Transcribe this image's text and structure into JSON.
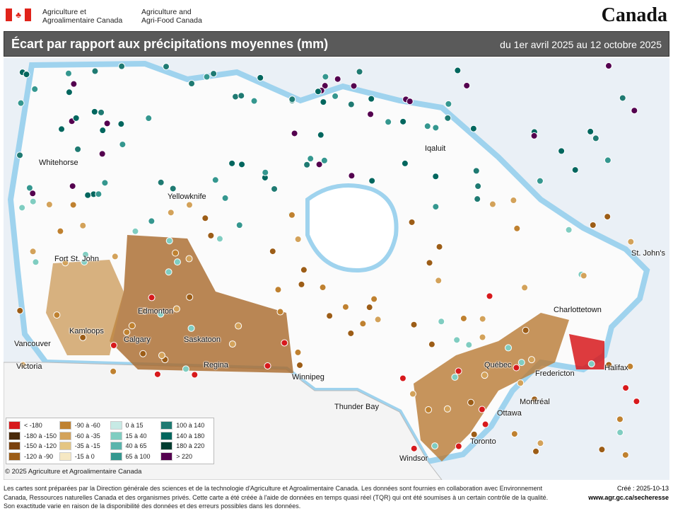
{
  "header": {
    "dept_fr": [
      "Agriculture et",
      "Agroalimentaire Canada"
    ],
    "dept_en": [
      "Agriculture and",
      "Agri-Food Canada"
    ],
    "wordmark": "Canada"
  },
  "title": "Écart par rapport aux précipitations moyennes (mm)",
  "date_range": "du 1er avril 2025 au 12 octobre 2025",
  "cities": [
    "Whitehorse",
    "Yellowknife",
    "Iqaluit",
    "Fort St. John",
    "Edmonton",
    "Kamloops",
    "Calgary",
    "Saskatoon",
    "Vancouver",
    "Victoria",
    "Regina",
    "Winnipeg",
    "Thunder Bay",
    "Québec",
    "Montréal",
    "Ottawa",
    "Toronto",
    "Windsor",
    "Fredericton",
    "Charlottetown",
    "Halifax",
    "St. John's"
  ],
  "legend": [
    {
      "label": "< -180",
      "color": "#d7191c"
    },
    {
      "label": "-180 à -150",
      "color": "#4a2a0a"
    },
    {
      "label": "-150 à -120",
      "color": "#7a420f"
    },
    {
      "label": "-120 à -90",
      "color": "#9c5d17"
    },
    {
      "label": "-90 à -60",
      "color": "#bf8130"
    },
    {
      "label": "-60 à -35",
      "color": "#d3a25a"
    },
    {
      "label": "-35 à -15",
      "color": "#e4c582"
    },
    {
      "label": "-15 à 0",
      "color": "#f6e8c3"
    },
    {
      "label": "0 à 15",
      "color": "#c7eae5"
    },
    {
      "label": "15 à 40",
      "color": "#80cdc1"
    },
    {
      "label": "40 à 65",
      "color": "#5ab4ac"
    },
    {
      "label": "65 à 100",
      "color": "#35978f"
    },
    {
      "label": "100 à 140",
      "color": "#1f7a72"
    },
    {
      "label": "140 à 180",
      "color": "#01665e"
    },
    {
      "label": "180 à 220",
      "color": "#003c30"
    },
    {
      "label": "> 220",
      "color": "#54004f"
    }
  ],
  "copyright": "© 2025 Agriculture et Agroalimentaire Canada",
  "footer": "Les cartes sont préparées par la Direction générale des sciences et de la technologie d'Agriculture et Agroalimentaire Canada. Les données sont fournies en collaboration avec Environnement Canada, Ressources naturelles Canada et des organismes privés. Cette carte a été créée à l'aide de données en temps quasi réel (TQR) qui ont été soumises à un certain contrôle de la qualité. Son exactitude varie en raison de la disponibilité des données et des erreurs possibles dans les données.",
  "created": "Créé : 2025-10-13",
  "url": "www.agr.gc.ca/secheresse"
}
